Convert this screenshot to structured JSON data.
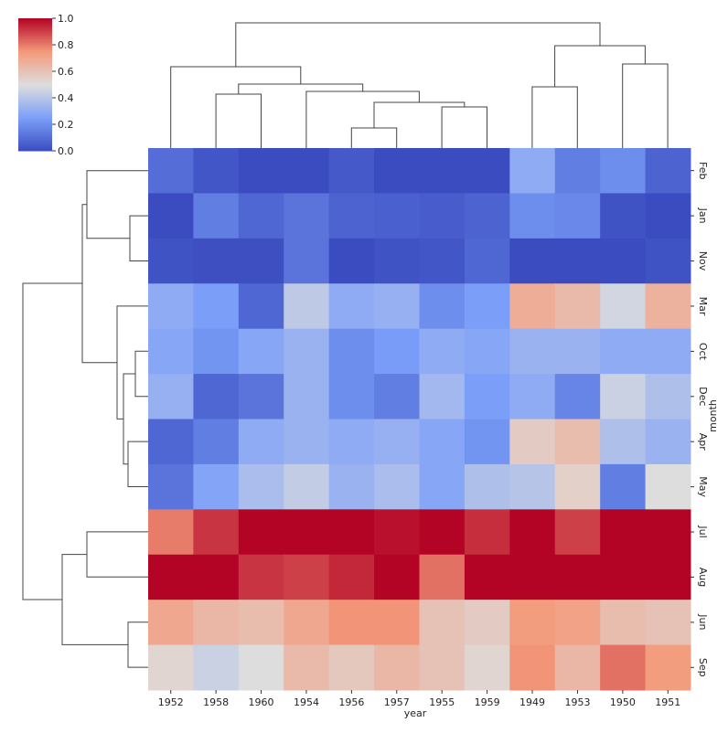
{
  "chart_data": {
    "type": "heatmap",
    "x_label": "year",
    "y_label": "month",
    "columns": [
      "1952",
      "1958",
      "1960",
      "1954",
      "1956",
      "1957",
      "1955",
      "1959",
      "1949",
      "1953",
      "1950",
      "1951"
    ],
    "rows": [
      "Feb",
      "Jan",
      "Nov",
      "Mar",
      "Oct",
      "Dec",
      "Apr",
      "May",
      "Jul",
      "Aug",
      "Jun",
      "Sep"
    ],
    "values": [
      [
        0.1,
        0.03,
        0.0,
        0.0,
        0.04,
        0.0,
        0.0,
        0.0,
        0.3,
        0.15,
        0.2,
        0.07
      ],
      [
        0.0,
        0.15,
        0.08,
        0.12,
        0.07,
        0.06,
        0.05,
        0.07,
        0.2,
        0.18,
        0.02,
        0.0
      ],
      [
        0.02,
        0.01,
        0.01,
        0.12,
        0.0,
        0.02,
        0.03,
        0.08,
        0.0,
        0.0,
        0.0,
        0.02
      ],
      [
        0.3,
        0.25,
        0.08,
        0.42,
        0.3,
        0.32,
        0.2,
        0.25,
        0.68,
        0.63,
        0.47,
        0.66
      ],
      [
        0.28,
        0.22,
        0.28,
        0.33,
        0.2,
        0.24,
        0.3,
        0.28,
        0.33,
        0.33,
        0.3,
        0.3
      ],
      [
        0.32,
        0.08,
        0.12,
        0.33,
        0.2,
        0.15,
        0.35,
        0.25,
        0.3,
        0.17,
        0.45,
        0.38
      ],
      [
        0.08,
        0.15,
        0.3,
        0.33,
        0.3,
        0.32,
        0.28,
        0.22,
        0.57,
        0.62,
        0.38,
        0.33
      ],
      [
        0.12,
        0.27,
        0.37,
        0.43,
        0.33,
        0.37,
        0.28,
        0.38,
        0.4,
        0.55,
        0.15,
        0.5
      ],
      [
        0.8,
        0.92,
        1.0,
        1.0,
        1.0,
        0.98,
        1.0,
        0.93,
        1.0,
        0.9,
        1.0,
        1.0
      ],
      [
        1.0,
        1.0,
        0.92,
        0.9,
        0.94,
        1.0,
        0.82,
        1.0,
        1.0,
        1.0,
        1.0,
        1.0
      ],
      [
        0.7,
        0.64,
        0.62,
        0.7,
        0.76,
        0.76,
        0.6,
        0.57,
        0.74,
        0.72,
        0.62,
        0.6
      ],
      [
        0.53,
        0.45,
        0.5,
        0.63,
        0.58,
        0.64,
        0.6,
        0.53,
        0.76,
        0.64,
        0.82,
        0.74
      ]
    ],
    "clim": [
      0,
      1
    ],
    "cticks": [
      {
        "value": 0,
        "label": "0.0"
      },
      {
        "value": 0.2,
        "label": "0.2"
      },
      {
        "value": 0.4,
        "label": "0.4"
      },
      {
        "value": 0.6,
        "label": "0.6"
      },
      {
        "value": 0.8,
        "label": "0.8"
      },
      {
        "value": 1,
        "label": "1.0"
      }
    ]
  }
}
